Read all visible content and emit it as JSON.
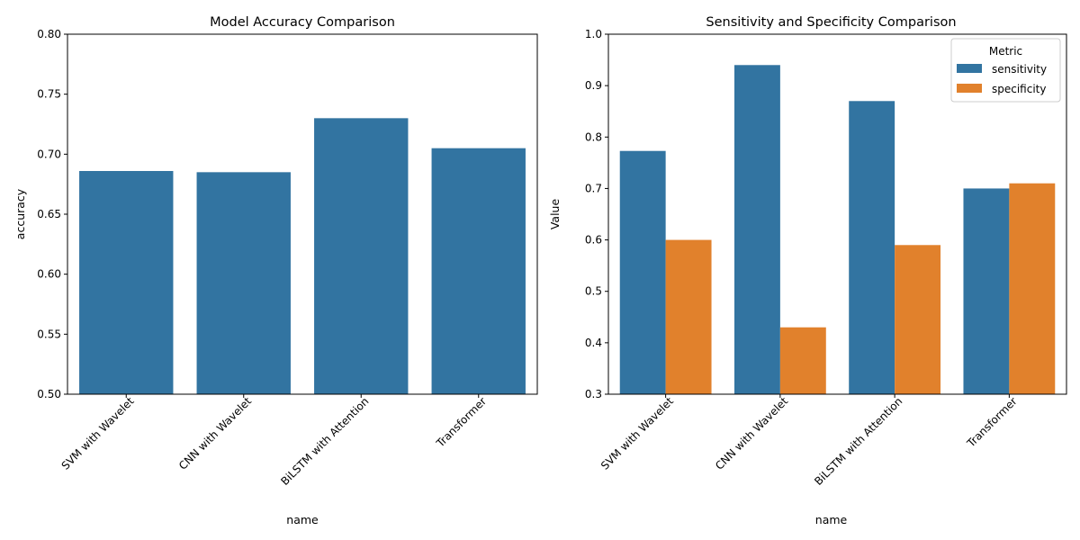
{
  "chart_data": [
    {
      "type": "bar",
      "title": "Model Accuracy Comparison",
      "xlabel": "name",
      "ylabel": "accuracy",
      "categories": [
        "SVM with Wavelet",
        "CNN with Wavelet",
        "BiLSTM with Attention",
        "Transformer"
      ],
      "series": [
        {
          "values": [
            0.686,
            0.685,
            0.73,
            0.705
          ],
          "color": "#3274a1"
        }
      ],
      "ylim": [
        0.5,
        0.8
      ],
      "yticks": [
        0.5,
        0.55,
        0.6,
        0.65,
        0.7,
        0.75,
        0.8
      ],
      "ytick_labels": [
        "0.50",
        "0.55",
        "0.60",
        "0.65",
        "0.70",
        "0.75",
        "0.80"
      ],
      "grid": false,
      "x_tick_rotation": 45
    },
    {
      "type": "bar",
      "title": "Sensitivity and Specificity Comparison",
      "xlabel": "name",
      "ylabel": "Value",
      "categories": [
        "SVM with Wavelet",
        "CNN with Wavelet",
        "BiLSTM with Attention",
        "Transformer"
      ],
      "series": [
        {
          "name": "sensitivity",
          "values": [
            0.773,
            0.94,
            0.87,
            0.7
          ],
          "color": "#3274a1"
        },
        {
          "name": "specificity",
          "values": [
            0.6,
            0.43,
            0.59,
            0.71
          ],
          "color": "#e1812c"
        }
      ],
      "ylim": [
        0.3,
        1.0
      ],
      "yticks": [
        0.3,
        0.4,
        0.5,
        0.6,
        0.7,
        0.8,
        0.9,
        1.0
      ],
      "ytick_labels": [
        "0.3",
        "0.4",
        "0.5",
        "0.6",
        "0.7",
        "0.8",
        "0.9",
        "1.0"
      ],
      "grid": false,
      "x_tick_rotation": 45,
      "legend": {
        "title": "Metric",
        "placement": "top-right"
      }
    }
  ]
}
